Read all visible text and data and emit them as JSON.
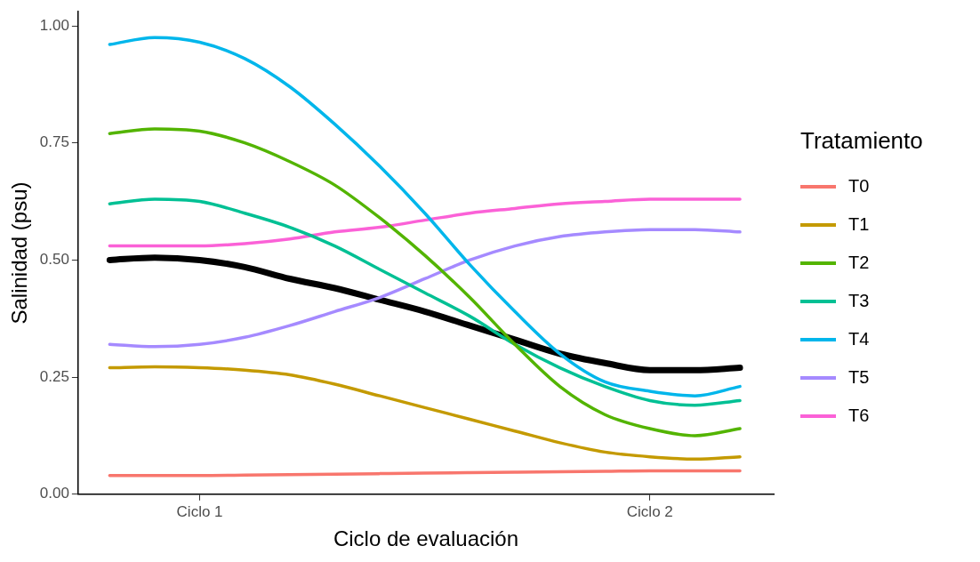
{
  "chart_data": {
    "type": "line",
    "xlabel": "Ciclo de evaluación",
    "ylabel": "Salinidad (psu)",
    "legend_title": "Tratamiento",
    "legend": "right",
    "grid": false,
    "marker": "none",
    "line_style": "solid",
    "categories": [
      null,
      null,
      "Ciclo 1",
      null,
      null,
      null,
      null,
      null,
      null,
      null,
      null,
      null,
      "Ciclo 2",
      null,
      null
    ],
    "ylim": [
      0,
      1.03
    ],
    "yticks": [
      {
        "value": 0,
        "label": "0.00"
      },
      {
        "value": 0.25,
        "label": "0.25"
      },
      {
        "value": 0.5,
        "label": "0.50"
      },
      {
        "value": 0.75,
        "label": "0.75"
      },
      {
        "value": 1,
        "label": "1.00"
      }
    ],
    "series": [
      {
        "name": "T0",
        "color": "#f8766d",
        "values": [
          0.04,
          0.04,
          0.04,
          0.041,
          0.042,
          0.043,
          0.044,
          0.045,
          0.046,
          0.047,
          0.048,
          0.049,
          0.05,
          0.05,
          0.05
        ]
      },
      {
        "name": "T1",
        "color": "#c49a00",
        "values": [
          0.27,
          0.272,
          0.27,
          0.265,
          0.255,
          0.235,
          0.21,
          0.185,
          0.16,
          0.135,
          0.11,
          0.09,
          0.08,
          0.075,
          0.08
        ]
      },
      {
        "name": "T2",
        "color": "#53b400",
        "values": [
          0.77,
          0.78,
          0.775,
          0.75,
          0.71,
          0.66,
          0.59,
          0.51,
          0.42,
          0.32,
          0.23,
          0.17,
          0.14,
          0.125,
          0.14
        ]
      },
      {
        "name": "T3",
        "color": "#00c094",
        "values": [
          0.62,
          0.63,
          0.625,
          0.6,
          0.57,
          0.53,
          0.48,
          0.43,
          0.38,
          0.32,
          0.27,
          0.23,
          0.2,
          0.19,
          0.2
        ]
      },
      {
        "name": "T4",
        "color": "#00b6eb",
        "values": [
          0.96,
          0.975,
          0.965,
          0.93,
          0.87,
          0.79,
          0.7,
          0.6,
          0.49,
          0.39,
          0.3,
          0.24,
          0.22,
          0.21,
          0.23
        ]
      },
      {
        "name": "T5",
        "color": "#a58aff",
        "values": [
          0.32,
          0.315,
          0.32,
          0.335,
          0.36,
          0.39,
          0.42,
          0.46,
          0.5,
          0.53,
          0.55,
          0.56,
          0.565,
          0.565,
          0.56
        ]
      },
      {
        "name": "T6",
        "color": "#fb61d7",
        "values": [
          0.53,
          0.53,
          0.53,
          0.535,
          0.545,
          0.56,
          0.57,
          0.585,
          0.6,
          0.61,
          0.62,
          0.625,
          0.63,
          0.63,
          0.63
        ]
      },
      {
        "color": "#000000",
        "values": [
          0.5,
          0.505,
          0.5,
          0.485,
          0.46,
          0.44,
          0.415,
          0.39,
          0.36,
          0.33,
          0.3,
          0.28,
          0.265,
          0.265,
          0.27
        ]
      }
    ]
  }
}
